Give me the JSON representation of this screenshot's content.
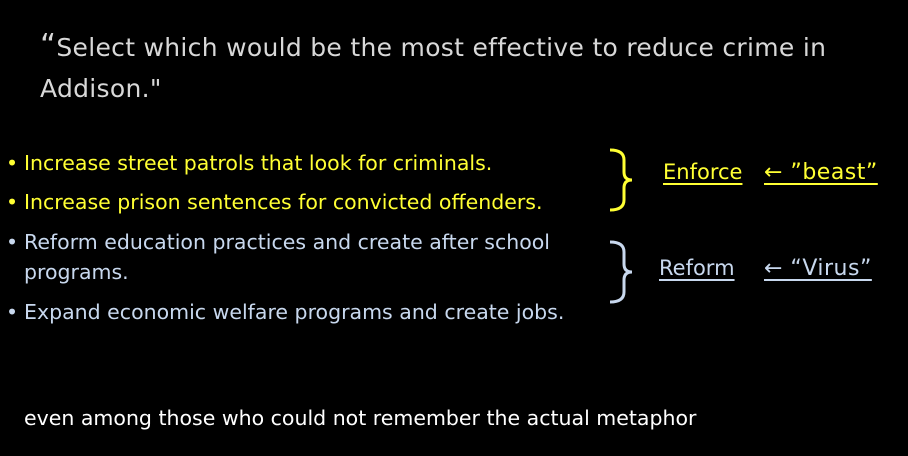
{
  "quote": {
    "open_mark": "“",
    "text": "Select which would be the most effective to reduce crime in Addison.\""
  },
  "options": [
    {
      "text": "Increase street patrols that look for criminals.",
      "group": "enforce"
    },
    {
      "text": "Increase prison sentences for convicted offenders.",
      "group": "enforce"
    },
    {
      "line1": "Reform education practices and create after school",
      "line2": "programs.",
      "group": "reform"
    },
    {
      "text": "Expand economic welfare programs and create jobs.",
      "group": "reform"
    }
  ],
  "groups": {
    "enforce": {
      "label": "Enforce",
      "metaphor": "← ”beast”",
      "color": "#ffff33"
    },
    "reform": {
      "label": "Reform",
      "metaphor": "← “Virus”",
      "color": "#c8d8ee"
    }
  },
  "bullet_glyph": "•",
  "footer": "even among those who could not remember the actual metaphor"
}
